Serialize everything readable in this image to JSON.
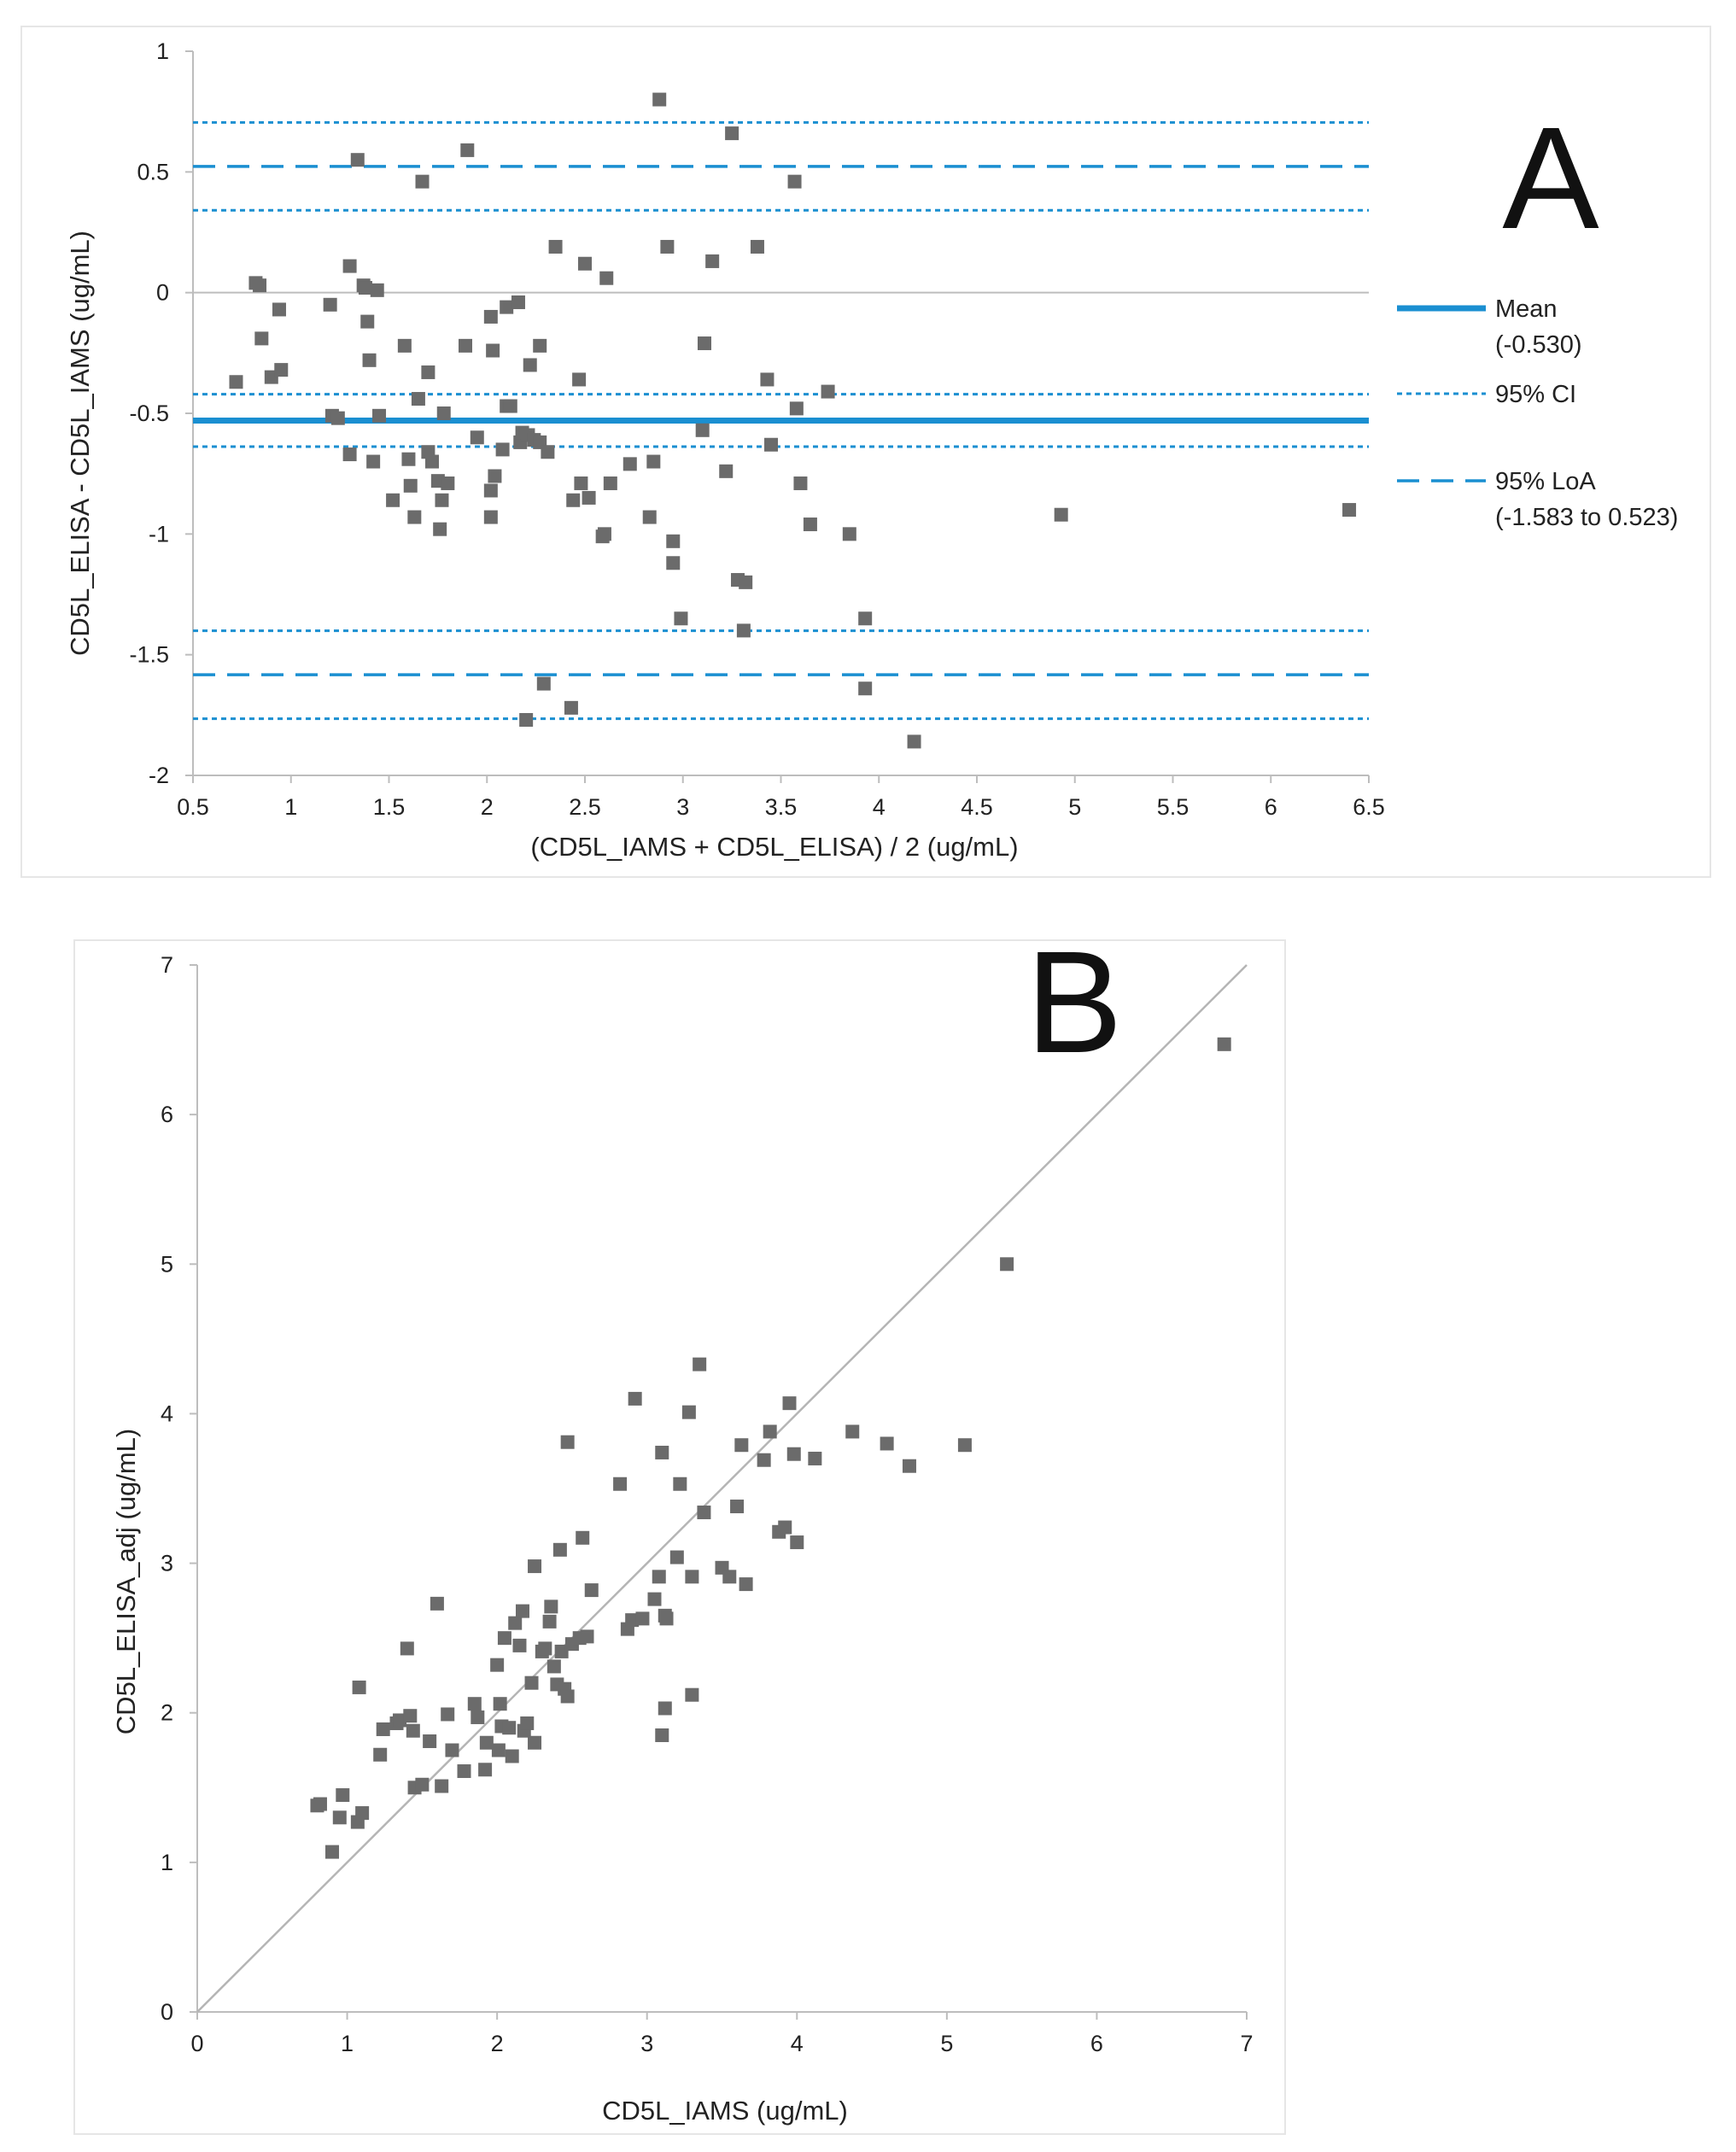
{
  "chart_data": [
    {
      "id": "A",
      "type": "scatter",
      "panel_label": "A",
      "title": "",
      "xlabel": "(CD5L_IAMS + CD5L_ELISA) / 2 (ug/mL)",
      "ylabel": "CD5L_ELISA - CD5L_IAMS (ug/mL)",
      "xlim": [
        0.5,
        6.5
      ],
      "ylim": [
        -2,
        1
      ],
      "xticks": [
        0.5,
        1,
        1.5,
        2,
        2.5,
        3,
        3.5,
        4,
        4.5,
        5,
        5.5,
        6,
        6.5
      ],
      "xtick_labels": [
        "0.5",
        "1",
        "1.5",
        "2",
        "2.5",
        "3",
        "3.5",
        "4",
        "4.5",
        "5",
        "5.5",
        "6",
        "6.5"
      ],
      "yticks": [
        1,
        0.5,
        0,
        -0.5,
        -1,
        -1.5,
        -2
      ],
      "ytick_labels": [
        "1",
        "0.5",
        "0",
        "-0.5",
        "-1",
        "-1.5",
        "-2"
      ],
      "zero_line": 0,
      "mean": -0.53,
      "mean_ci": [
        -0.638,
        -0.421
      ],
      "loa": [
        -1.583,
        0.523
      ],
      "upper_loa_ci": [
        0.341,
        0.705
      ],
      "lower_loa_ci": [
        -1.765,
        -1.401
      ],
      "legend": [
        {
          "style": "solid",
          "line1": "Mean",
          "line2": "(-0.530)"
        },
        {
          "style": "dotted",
          "line1": "95% CI",
          "line2": ""
        },
        {
          "style": "dashed",
          "line1": "95% LoA",
          "line2": "(-1.583 to 0.523)"
        }
      ],
      "colors": {
        "line": "#1a8fd1",
        "point": "#6b6b6b",
        "zero": "#bdbdbd"
      },
      "points": [
        [
          0.72,
          -0.37
        ],
        [
          0.82,
          0.04
        ],
        [
          0.84,
          0.03
        ],
        [
          0.85,
          -0.19
        ],
        [
          0.9,
          -0.35
        ],
        [
          0.94,
          -0.07
        ],
        [
          0.95,
          -0.32
        ],
        [
          1.2,
          -0.05
        ],
        [
          1.21,
          -0.51
        ],
        [
          1.24,
          -0.52
        ],
        [
          1.3,
          0.11
        ],
        [
          1.3,
          -0.67
        ],
        [
          1.34,
          0.55
        ],
        [
          1.37,
          0.03
        ],
        [
          1.38,
          0.02
        ],
        [
          1.39,
          -0.12
        ],
        [
          1.4,
          -0.28
        ],
        [
          1.42,
          -0.7
        ],
        [
          1.44,
          0.01
        ],
        [
          1.45,
          -0.51
        ],
        [
          1.52,
          -0.86
        ],
        [
          1.58,
          -0.22
        ],
        [
          1.6,
          -0.69
        ],
        [
          1.61,
          -0.8
        ],
        [
          1.63,
          -0.93
        ],
        [
          1.65,
          -0.44
        ],
        [
          1.67,
          0.46
        ],
        [
          1.7,
          -0.33
        ],
        [
          1.7,
          -0.66
        ],
        [
          1.72,
          -0.7
        ],
        [
          1.75,
          -0.78
        ],
        [
          1.76,
          -0.98
        ],
        [
          1.77,
          -0.86
        ],
        [
          1.78,
          -0.5
        ],
        [
          1.8,
          -0.79
        ],
        [
          1.89,
          -0.22
        ],
        [
          1.9,
          0.59
        ],
        [
          1.95,
          -0.6
        ],
        [
          2.02,
          -0.1
        ],
        [
          2.02,
          -0.82
        ],
        [
          2.02,
          -0.93
        ],
        [
          2.03,
          -0.24
        ],
        [
          2.04,
          -0.76
        ],
        [
          2.08,
          -0.65
        ],
        [
          2.1,
          -0.06
        ],
        [
          2.1,
          -0.47
        ],
        [
          2.12,
          -0.47
        ],
        [
          2.16,
          -0.04
        ],
        [
          2.17,
          -0.62
        ],
        [
          2.18,
          -0.58
        ],
        [
          2.2,
          -1.77
        ],
        [
          2.21,
          -0.59
        ],
        [
          2.22,
          -0.3
        ],
        [
          2.24,
          -0.61
        ],
        [
          2.27,
          -0.22
        ],
        [
          2.27,
          -0.62
        ],
        [
          2.29,
          -1.62
        ],
        [
          2.31,
          -0.66
        ],
        [
          2.35,
          0.19
        ],
        [
          2.43,
          -1.72
        ],
        [
          2.44,
          -0.86
        ],
        [
          2.47,
          -0.36
        ],
        [
          2.48,
          -0.79
        ],
        [
          2.5,
          0.12
        ],
        [
          2.52,
          -0.85
        ],
        [
          2.59,
          -1.01
        ],
        [
          2.6,
          -1.0
        ],
        [
          2.61,
          0.06
        ],
        [
          2.63,
          -0.79
        ],
        [
          2.73,
          -0.71
        ],
        [
          2.83,
          -0.93
        ],
        [
          2.85,
          -0.7
        ],
        [
          2.88,
          0.8
        ],
        [
          2.92,
          0.19
        ],
        [
          2.95,
          -1.03
        ],
        [
          2.95,
          -1.12
        ],
        [
          2.99,
          -1.35
        ],
        [
          3.1,
          -0.57
        ],
        [
          3.11,
          -0.21
        ],
        [
          3.15,
          0.13
        ],
        [
          3.22,
          -0.74
        ],
        [
          3.25,
          0.66
        ],
        [
          3.28,
          -1.19
        ],
        [
          3.31,
          -1.4
        ],
        [
          3.32,
          -1.2
        ],
        [
          3.38,
          0.19
        ],
        [
          3.43,
          -0.36
        ],
        [
          3.45,
          -0.63
        ],
        [
          3.57,
          0.46
        ],
        [
          3.58,
          -0.48
        ],
        [
          3.6,
          -0.79
        ],
        [
          3.65,
          -0.96
        ],
        [
          3.74,
          -0.41
        ],
        [
          3.85,
          -1.0
        ],
        [
          3.93,
          -1.35
        ],
        [
          3.93,
          -1.64
        ],
        [
          4.18,
          -1.86
        ],
        [
          4.93,
          -0.92
        ],
        [
          6.4,
          -0.9
        ]
      ]
    },
    {
      "id": "B",
      "type": "scatter",
      "panel_label": "B",
      "title": "",
      "xlabel": "CD5L_IAMS (ug/mL)",
      "ylabel": "CD5L_ELISA_adj (ug/mL)",
      "xlim": [
        0,
        7
      ],
      "ylim": [
        0,
        7
      ],
      "xticks": [
        0,
        1,
        2,
        3,
        4,
        5,
        6,
        7
      ],
      "xtick_labels": [
        "0",
        "1",
        "2",
        "3",
        "4",
        "5",
        "6",
        "7"
      ],
      "yticks": [
        0,
        1,
        2,
        3,
        4,
        5,
        6,
        7
      ],
      "ytick_labels": [
        "0",
        "1",
        "2",
        "3",
        "4",
        "5",
        "6",
        "7"
      ],
      "identity_line": [
        [
          0,
          0
        ],
        [
          7,
          7
        ]
      ],
      "colors": {
        "point": "#6b6b6b",
        "identity": "#b5b5b5"
      },
      "points": [
        [
          0.8,
          1.38
        ],
        [
          0.82,
          1.39
        ],
        [
          0.9,
          1.07
        ],
        [
          0.95,
          1.3
        ],
        [
          0.97,
          1.45
        ],
        [
          1.07,
          1.27
        ],
        [
          1.08,
          2.17
        ],
        [
          1.1,
          1.33
        ],
        [
          1.22,
          1.72
        ],
        [
          1.24,
          1.89
        ],
        [
          1.33,
          1.93
        ],
        [
          1.35,
          1.95
        ],
        [
          1.4,
          2.43
        ],
        [
          1.42,
          1.98
        ],
        [
          1.44,
          1.88
        ],
        [
          1.45,
          1.5
        ],
        [
          1.5,
          1.52
        ],
        [
          1.55,
          1.81
        ],
        [
          1.6,
          2.73
        ],
        [
          1.63,
          1.51
        ],
        [
          1.67,
          1.99
        ],
        [
          1.7,
          1.75
        ],
        [
          1.78,
          1.61
        ],
        [
          1.85,
          2.06
        ],
        [
          1.87,
          1.97
        ],
        [
          1.92,
          1.62
        ],
        [
          1.93,
          1.8
        ],
        [
          2.0,
          2.32
        ],
        [
          2.01,
          1.75
        ],
        [
          2.02,
          2.06
        ],
        [
          2.03,
          1.91
        ],
        [
          2.05,
          2.5
        ],
        [
          2.08,
          1.9
        ],
        [
          2.1,
          1.71
        ],
        [
          2.12,
          2.6
        ],
        [
          2.15,
          2.45
        ],
        [
          2.17,
          2.68
        ],
        [
          2.18,
          1.88
        ],
        [
          2.2,
          1.93
        ],
        [
          2.23,
          2.2
        ],
        [
          2.25,
          2.98
        ],
        [
          2.25,
          1.8
        ],
        [
          2.3,
          2.41
        ],
        [
          2.32,
          2.43
        ],
        [
          2.35,
          2.61
        ],
        [
          2.36,
          2.71
        ],
        [
          2.38,
          2.31
        ],
        [
          2.4,
          2.19
        ],
        [
          2.42,
          3.09
        ],
        [
          2.43,
          2.41
        ],
        [
          2.45,
          2.16
        ],
        [
          2.47,
          2.11
        ],
        [
          2.47,
          3.81
        ],
        [
          2.5,
          2.46
        ],
        [
          2.55,
          2.5
        ],
        [
          2.57,
          3.17
        ],
        [
          2.6,
          2.51
        ],
        [
          2.63,
          2.82
        ],
        [
          2.82,
          3.53
        ],
        [
          2.87,
          2.56
        ],
        [
          2.9,
          2.62
        ],
        [
          2.92,
          4.1
        ],
        [
          2.97,
          2.63
        ],
        [
          3.05,
          2.76
        ],
        [
          3.08,
          2.91
        ],
        [
          3.1,
          3.74
        ],
        [
          3.1,
          1.85
        ],
        [
          3.12,
          2.65
        ],
        [
          3.12,
          2.03
        ],
        [
          3.13,
          2.63
        ],
        [
          3.2,
          3.04
        ],
        [
          3.22,
          3.53
        ],
        [
          3.28,
          4.01
        ],
        [
          3.3,
          2.91
        ],
        [
          3.3,
          2.12
        ],
        [
          3.35,
          4.33
        ],
        [
          3.38,
          3.34
        ],
        [
          3.5,
          2.97
        ],
        [
          3.55,
          2.91
        ],
        [
          3.6,
          3.38
        ],
        [
          3.63,
          3.79
        ],
        [
          3.66,
          2.86
        ],
        [
          3.78,
          3.69
        ],
        [
          3.82,
          3.88
        ],
        [
          3.88,
          3.21
        ],
        [
          3.92,
          3.24
        ],
        [
          3.95,
          4.07
        ],
        [
          3.98,
          3.73
        ],
        [
          4.0,
          3.14
        ],
        [
          4.12,
          3.7
        ],
        [
          4.37,
          3.88
        ],
        [
          4.6,
          3.8
        ],
        [
          4.75,
          3.65
        ],
        [
          5.12,
          3.79
        ],
        [
          5.4,
          5.0
        ],
        [
          6.85,
          6.47
        ]
      ]
    }
  ]
}
